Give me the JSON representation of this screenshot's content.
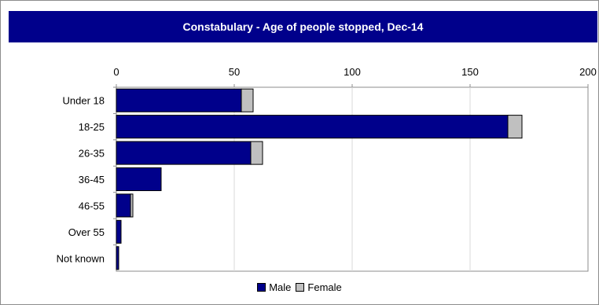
{
  "chart_data": {
    "type": "bar",
    "orientation": "horizontal",
    "stacked": true,
    "title": "Constabulary - Age of people stopped, Dec-14",
    "categories": [
      "Under 18",
      "18-25",
      "26-35",
      "36-45",
      "46-55",
      "Over 55",
      "Not known"
    ],
    "series": [
      {
        "name": "Male",
        "color": "#00008b",
        "values": [
          53,
          166,
          57,
          19,
          6,
          2,
          1
        ]
      },
      {
        "name": "Female",
        "color": "#c0c0c0",
        "values": [
          5,
          6,
          5,
          0,
          1,
          0,
          0
        ]
      }
    ],
    "xlim": [
      0,
      200
    ],
    "xticks": [
      "0",
      "50",
      "100",
      "150",
      "200"
    ],
    "grid": true,
    "legend_position": "bottom",
    "axis_position": "top"
  }
}
